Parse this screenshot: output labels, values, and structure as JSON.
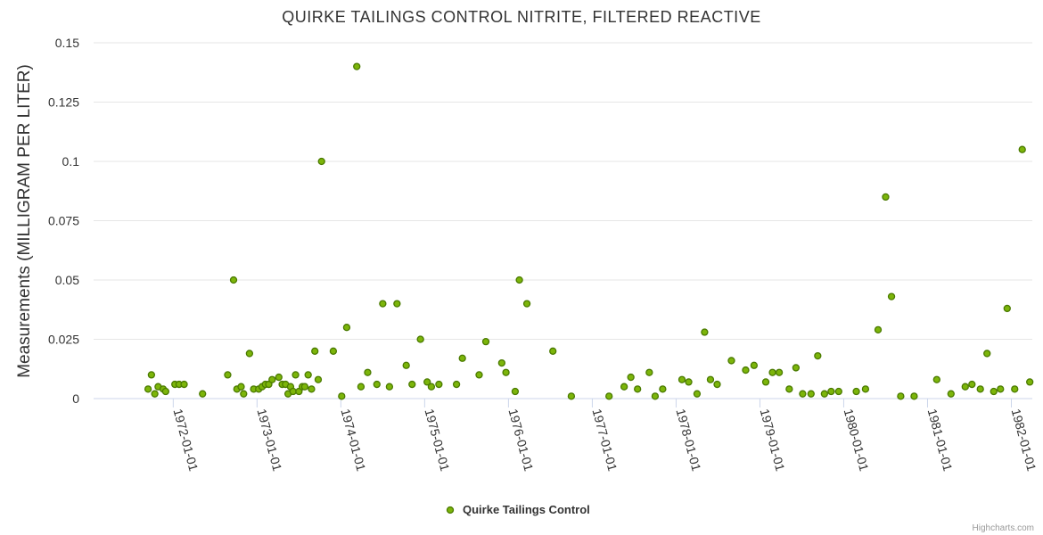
{
  "chart_data": {
    "type": "scatter",
    "title": "QUIRKE TAILINGS CONTROL NITRITE, FILTERED REACTIVE",
    "xlabel": "",
    "ylabel": "Measurements (MILLIGRAM PER LITER)",
    "ylim": [
      0,
      0.15
    ],
    "yticks": [
      "0",
      "0.025",
      "0.05",
      "0.075",
      "0.1",
      "0.125",
      "0.15"
    ],
    "xlim": [
      1971.05,
      1982.25
    ],
    "xticks": [
      {
        "label": "1972-01-01",
        "value": 1972.0
      },
      {
        "label": "1973-01-01",
        "value": 1973.0
      },
      {
        "label": "1974-01-01",
        "value": 1974.0
      },
      {
        "label": "1975-01-01",
        "value": 1975.0
      },
      {
        "label": "1976-01-01",
        "value": 1976.0
      },
      {
        "label": "1977-01-01",
        "value": 1977.0
      },
      {
        "label": "1978-01-01",
        "value": 1978.0
      },
      {
        "label": "1979-01-01",
        "value": 1979.0
      },
      {
        "label": "1980-01-01",
        "value": 1980.0
      },
      {
        "label": "1981-01-01",
        "value": 1981.0
      },
      {
        "label": "1982-01-01",
        "value": 1982.0
      }
    ],
    "grid": true,
    "legend_position": "bottom-center",
    "series": [
      {
        "name": "Quirke Tailings Control",
        "color": "#7cb50a",
        "points": [
          [
            1971.7,
            0.004
          ],
          [
            1971.74,
            0.01
          ],
          [
            1971.78,
            0.002
          ],
          [
            1971.82,
            0.005
          ],
          [
            1971.88,
            0.004
          ],
          [
            1971.91,
            0.003
          ],
          [
            1972.02,
            0.006
          ],
          [
            1972.07,
            0.006
          ],
          [
            1972.13,
            0.006
          ],
          [
            1972.35,
            0.002
          ],
          [
            1972.65,
            0.01
          ],
          [
            1972.72,
            0.05
          ],
          [
            1972.76,
            0.004
          ],
          [
            1972.81,
            0.005
          ],
          [
            1972.84,
            0.002
          ],
          [
            1972.91,
            0.019
          ],
          [
            1972.96,
            0.004
          ],
          [
            1973.02,
            0.004
          ],
          [
            1973.06,
            0.005
          ],
          [
            1973.1,
            0.006
          ],
          [
            1973.14,
            0.006
          ],
          [
            1973.18,
            0.008
          ],
          [
            1973.26,
            0.009
          ],
          [
            1973.3,
            0.006
          ],
          [
            1973.34,
            0.006
          ],
          [
            1973.37,
            0.002
          ],
          [
            1973.4,
            0.005
          ],
          [
            1973.43,
            0.003
          ],
          [
            1973.46,
            0.01
          ],
          [
            1973.5,
            0.003
          ],
          [
            1973.54,
            0.005
          ],
          [
            1973.57,
            0.005
          ],
          [
            1973.61,
            0.01
          ],
          [
            1973.65,
            0.004
          ],
          [
            1973.69,
            0.02
          ],
          [
            1973.73,
            0.008
          ],
          [
            1973.77,
            0.1
          ],
          [
            1973.91,
            0.02
          ],
          [
            1974.01,
            0.001
          ],
          [
            1974.07,
            0.03
          ],
          [
            1974.19,
            0.14
          ],
          [
            1974.24,
            0.005
          ],
          [
            1974.32,
            0.011
          ],
          [
            1974.43,
            0.006
          ],
          [
            1974.5,
            0.04
          ],
          [
            1974.58,
            0.005
          ],
          [
            1974.67,
            0.04
          ],
          [
            1974.78,
            0.014
          ],
          [
            1974.85,
            0.006
          ],
          [
            1974.95,
            0.025
          ],
          [
            1975.03,
            0.007
          ],
          [
            1975.08,
            0.005
          ],
          [
            1975.17,
            0.006
          ],
          [
            1975.38,
            0.006
          ],
          [
            1975.45,
            0.017
          ],
          [
            1975.65,
            0.01
          ],
          [
            1975.73,
            0.024
          ],
          [
            1975.92,
            0.015
          ],
          [
            1975.97,
            0.011
          ],
          [
            1976.08,
            0.003
          ],
          [
            1976.13,
            0.05
          ],
          [
            1976.22,
            0.04
          ],
          [
            1976.53,
            0.02
          ],
          [
            1976.75,
            0.001
          ],
          [
            1977.2,
            0.001
          ],
          [
            1977.38,
            0.005
          ],
          [
            1977.46,
            0.009
          ],
          [
            1977.54,
            0.004
          ],
          [
            1977.68,
            0.011
          ],
          [
            1977.75,
            0.001
          ],
          [
            1977.84,
            0.004
          ],
          [
            1978.07,
            0.008
          ],
          [
            1978.15,
            0.007
          ],
          [
            1978.25,
            0.002
          ],
          [
            1978.34,
            0.028
          ],
          [
            1978.41,
            0.008
          ],
          [
            1978.49,
            0.006
          ],
          [
            1978.66,
            0.016
          ],
          [
            1978.83,
            0.012
          ],
          [
            1978.93,
            0.014
          ],
          [
            1979.07,
            0.007
          ],
          [
            1979.15,
            0.011
          ],
          [
            1979.23,
            0.011
          ],
          [
            1979.35,
            0.004
          ],
          [
            1979.43,
            0.013
          ],
          [
            1979.51,
            0.002
          ],
          [
            1979.61,
            0.002
          ],
          [
            1979.69,
            0.018
          ],
          [
            1979.77,
            0.002
          ],
          [
            1979.85,
            0.003
          ],
          [
            1979.94,
            0.003
          ],
          [
            1980.15,
            0.003
          ],
          [
            1980.26,
            0.004
          ],
          [
            1980.41,
            0.029
          ],
          [
            1980.5,
            0.085
          ],
          [
            1980.57,
            0.043
          ],
          [
            1980.68,
            0.001
          ],
          [
            1980.84,
            0.001
          ],
          [
            1981.11,
            0.008
          ],
          [
            1981.28,
            0.002
          ],
          [
            1981.45,
            0.005
          ],
          [
            1981.53,
            0.006
          ],
          [
            1981.63,
            0.004
          ],
          [
            1981.71,
            0.019
          ],
          [
            1981.79,
            0.003
          ],
          [
            1981.87,
            0.004
          ],
          [
            1981.95,
            0.038
          ],
          [
            1982.04,
            0.004
          ],
          [
            1982.13,
            0.105
          ],
          [
            1982.22,
            0.007
          ]
        ]
      }
    ]
  },
  "legend": {
    "label": "Quirke Tailings Control"
  },
  "credits": {
    "text": "Highcharts.com"
  }
}
